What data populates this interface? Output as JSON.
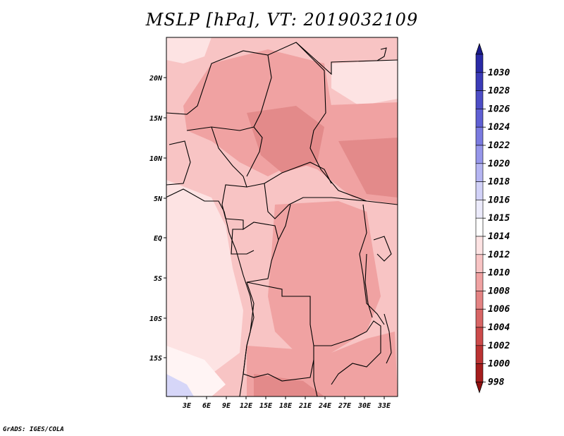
{
  "title": "MSLP [hPa], VT: 2019032109",
  "credit": "GrADS: IGES/COLA",
  "map": {
    "lat_labels": [
      "20N",
      "15N",
      "10N",
      "5N",
      "EQ",
      "5S",
      "10S",
      "15S"
    ],
    "lon_labels": [
      "3E",
      "6E",
      "9E",
      "12E",
      "15E",
      "18E",
      "21E",
      "24E",
      "27E",
      "30E",
      "33E"
    ]
  },
  "colorbar": {
    "levels": [
      "1030",
      "1028",
      "1026",
      "1024",
      "1022",
      "1020",
      "1018",
      "1016",
      "1015",
      "1014",
      "1012",
      "1010",
      "1008",
      "1006",
      "1004",
      "1002",
      "1000",
      "998"
    ],
    "colors": [
      "#1a1a8c",
      "#2a2aa6",
      "#3b3bb8",
      "#4d4dc6",
      "#5f5fd4",
      "#7a7ae0",
      "#9696ea",
      "#b5b5f2",
      "#d2d2f8",
      "#ecebfb",
      "#ffffff",
      "#fde3e3",
      "#f8c4c4",
      "#f0a2a2",
      "#e48383",
      "#d86565",
      "#cc4a4a",
      "#bb3232",
      "#a51d1d",
      "#8f1010"
    ]
  },
  "colors": {
    "land_low": "#f0a2a2",
    "land_lower": "#e38a8a",
    "ocean_mid": "#f8c4c4",
    "ocean_high": "#fde3e3",
    "high_pressure": "#d6d6f8"
  }
}
